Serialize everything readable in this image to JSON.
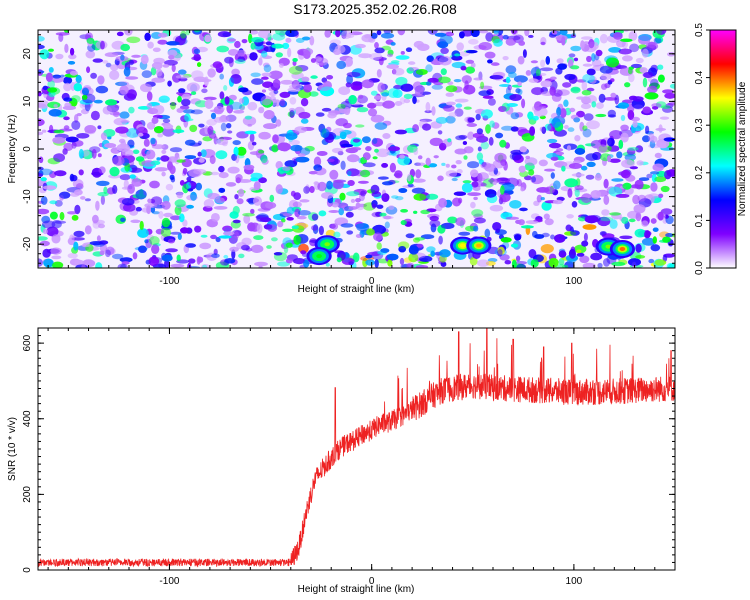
{
  "title": "S173.2025.352.02.26.R08",
  "chart_data": [
    {
      "type": "heatmap",
      "xlabel": "Height of straight line (km)",
      "ylabel": "Frequency (Hz)",
      "xlim": [
        -165,
        150
      ],
      "ylim": [
        -25,
        25
      ],
      "xticks": [
        -100,
        0,
        100
      ],
      "yticks": [
        -20,
        -10,
        0,
        10,
        20
      ],
      "colorbar": {
        "label": "Normalized spectral amplitude",
        "range": [
          0,
          0.5
        ],
        "ticks": [
          "0.0",
          "0.1",
          "0.2",
          "0.3",
          "0.4",
          "0.5"
        ],
        "colors": [
          "#ffffff",
          "#7f00ff",
          "#0000ff",
          "#00ffff",
          "#00ff00",
          "#ffff00",
          "#ff0000",
          "#ff00ff"
        ]
      },
      "hotspots": [
        {
          "x": -22,
          "y": -20,
          "value": 0.32
        },
        {
          "x": -26,
          "y": -22.5,
          "value": 0.28
        },
        {
          "x": 45,
          "y": -20.3,
          "value": 0.36
        },
        {
          "x": 53,
          "y": -20.3,
          "value": 0.38
        },
        {
          "x": 117,
          "y": -20.5,
          "value": 0.32
        },
        {
          "x": 124,
          "y": -21,
          "value": 0.4
        }
      ]
    },
    {
      "type": "line",
      "xlabel": "Height of straight line (km)",
      "ylabel": "SNR (10 * v/v)",
      "xlim": [
        -165,
        150
      ],
      "ylim": [
        0,
        640
      ],
      "xticks": [
        -100,
        0,
        100
      ],
      "yticks": [
        0,
        200,
        400,
        600
      ],
      "color": "#ee2222",
      "envelope": {
        "x": [
          -165,
          -40,
          -36,
          -32,
          -28,
          -24,
          -20,
          -16,
          -12,
          -8,
          -4,
          0,
          4,
          8,
          12,
          16,
          20,
          25,
          30,
          35,
          40,
          50,
          60,
          80,
          100,
          120,
          140,
          150
        ],
        "y": [
          20,
          20,
          60,
          160,
          240,
          270,
          295,
          320,
          335,
          345,
          360,
          370,
          385,
          390,
          400,
          410,
          425,
          440,
          460,
          475,
          480,
          488,
          482,
          476,
          470,
          472,
          478,
          480
        ]
      },
      "spikes": [
        {
          "x": -18,
          "y": 482
        },
        {
          "x": 43,
          "y": 630
        },
        {
          "x": 57,
          "y": 640
        },
        {
          "x": 70,
          "y": 610
        },
        {
          "x": 85,
          "y": 590
        },
        {
          "x": 99,
          "y": 600
        },
        {
          "x": 148,
          "y": 580
        }
      ]
    }
  ]
}
